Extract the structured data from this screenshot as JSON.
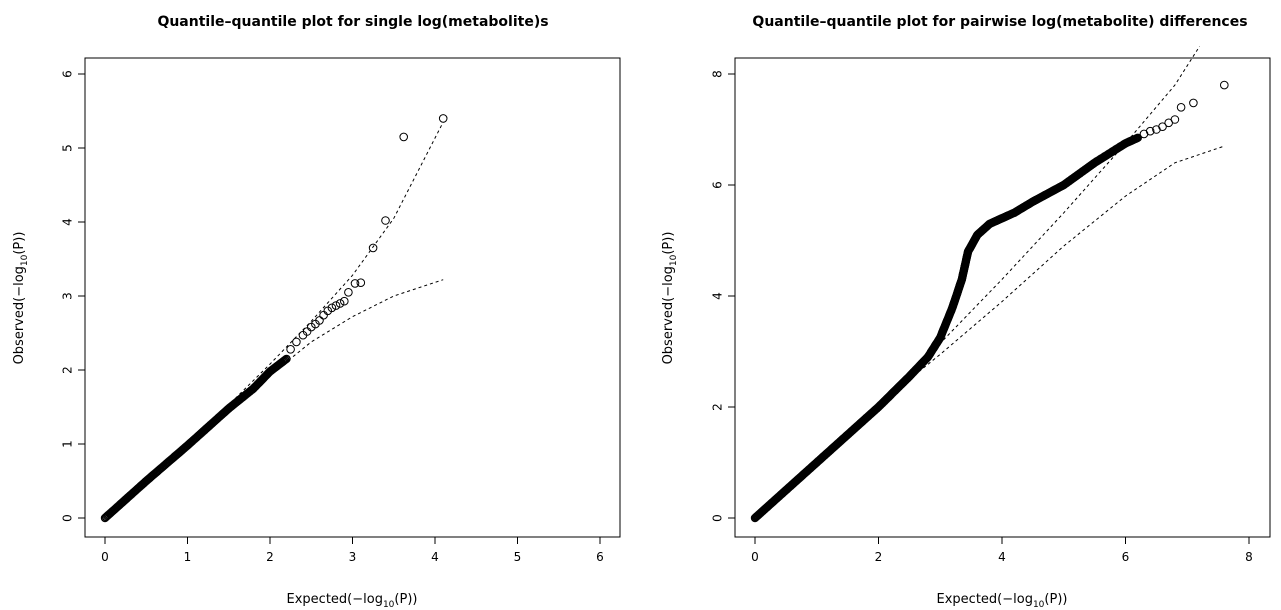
{
  "chart_data": [
    {
      "type": "scatter",
      "title": "Quantile–quantile plot for single log(metabolite)s",
      "xlabel": "Expected(−log10(P))",
      "ylabel": "Observed(−log10(P))",
      "xlabel_parts": [
        "Expected(−log",
        "10",
        "(P))"
      ],
      "ylabel_parts": [
        "Observed(−log",
        "10",
        "(P))"
      ],
      "xlim": [
        0,
        6
      ],
      "ylim": [
        0,
        6
      ],
      "x_ticks": [
        0,
        1,
        2,
        3,
        4,
        5,
        6
      ],
      "y_ticks": [
        0,
        1,
        2,
        3,
        4,
        5,
        6
      ],
      "grid": false,
      "dense_path": [
        [
          0,
          0
        ],
        [
          0.5,
          0.5
        ],
        [
          1,
          0.98
        ],
        [
          1.5,
          1.48
        ],
        [
          1.8,
          1.75
        ],
        [
          2,
          1.98
        ],
        [
          2.2,
          2.15
        ]
      ],
      "points": [
        [
          2.25,
          2.28
        ],
        [
          2.32,
          2.38
        ],
        [
          2.4,
          2.47
        ],
        [
          2.45,
          2.52
        ],
        [
          2.5,
          2.58
        ],
        [
          2.55,
          2.62
        ],
        [
          2.6,
          2.67
        ],
        [
          2.65,
          2.74
        ],
        [
          2.7,
          2.8
        ],
        [
          2.75,
          2.84
        ],
        [
          2.8,
          2.87
        ],
        [
          2.85,
          2.9
        ],
        [
          2.9,
          2.93
        ],
        [
          2.95,
          3.05
        ],
        [
          3.03,
          3.17
        ],
        [
          3.1,
          3.18
        ],
        [
          3.25,
          3.65
        ],
        [
          3.4,
          4.02
        ],
        [
          3.62,
          5.15
        ],
        [
          4.1,
          5.4
        ]
      ],
      "upper_band": [
        [
          1.0,
          1.0
        ],
        [
          1.5,
          1.53
        ],
        [
          2,
          2.08
        ],
        [
          2.5,
          2.66
        ],
        [
          3,
          3.28
        ],
        [
          3.5,
          4.05
        ],
        [
          4.1,
          5.35
        ]
      ],
      "lower_band": [
        [
          1.0,
          0.98
        ],
        [
          1.5,
          1.46
        ],
        [
          2,
          1.93
        ],
        [
          2.3,
          2.2
        ],
        [
          2.5,
          2.38
        ],
        [
          3,
          2.72
        ],
        [
          3.5,
          3.0
        ],
        [
          4.1,
          3.22
        ]
      ]
    },
    {
      "type": "scatter",
      "title": "Quantile–quantile plot for pairwise log(metabolite) differences",
      "xlabel": "Expected(−log10(P))",
      "ylabel": "Observed(−log10(P))",
      "xlabel_parts": [
        "Expected(−log",
        "10",
        "(P))"
      ],
      "ylabel_parts": [
        "Observed(−log",
        "10",
        "(P))"
      ],
      "xlim": [
        0,
        8
      ],
      "ylim": [
        0,
        8
      ],
      "x_ticks": [
        0,
        2,
        4,
        6,
        8
      ],
      "y_ticks": [
        0,
        2,
        4,
        6,
        8
      ],
      "grid": false,
      "dense_path": [
        [
          0,
          0
        ],
        [
          1,
          1
        ],
        [
          2,
          2
        ],
        [
          2.5,
          2.55
        ],
        [
          2.8,
          2.9
        ],
        [
          3.0,
          3.25
        ],
        [
          3.2,
          3.8
        ],
        [
          3.35,
          4.3
        ],
        [
          3.45,
          4.8
        ],
        [
          3.6,
          5.1
        ],
        [
          3.8,
          5.3
        ],
        [
          4.2,
          5.5
        ],
        [
          4.5,
          5.7
        ],
        [
          5,
          6.0
        ],
        [
          5.5,
          6.4
        ],
        [
          6,
          6.75
        ],
        [
          6.2,
          6.85
        ]
      ],
      "points": [
        [
          6.3,
          6.92
        ],
        [
          6.4,
          6.97
        ],
        [
          6.5,
          7.0
        ],
        [
          6.6,
          7.05
        ],
        [
          6.7,
          7.12
        ],
        [
          6.8,
          7.18
        ],
        [
          6.9,
          7.4
        ],
        [
          7.1,
          7.48
        ],
        [
          7.6,
          7.8
        ]
      ],
      "upper_band": [
        [
          2.5,
          2.6
        ],
        [
          3,
          3.15
        ],
        [
          4,
          4.3
        ],
        [
          5,
          5.5
        ],
        [
          6,
          6.75
        ],
        [
          6.8,
          7.8
        ],
        [
          7.2,
          8.5
        ]
      ],
      "lower_band": [
        [
          2.5,
          2.5
        ],
        [
          3,
          2.95
        ],
        [
          4,
          3.9
        ],
        [
          5,
          4.9
        ],
        [
          6,
          5.8
        ],
        [
          6.8,
          6.4
        ],
        [
          7.6,
          6.7
        ]
      ]
    }
  ]
}
